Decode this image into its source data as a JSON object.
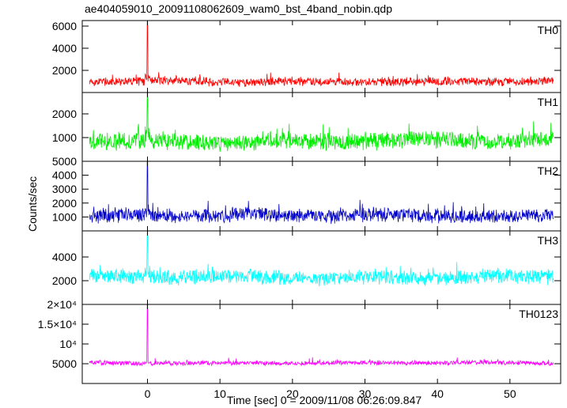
{
  "chart_data": {
    "type": "line",
    "title": "ae404059010_20091108062609_wam0_bst_4band_nobin.qdp",
    "xlabel": "Time [sec] 0 = 2009/11/08 06:26:09.847",
    "ylabel": "Counts/sec",
    "xlim": [
      -9,
      57
    ],
    "x_ticks": [
      0,
      10,
      20,
      30,
      40,
      50
    ],
    "x_tick_labels": [
      "0",
      "10",
      "20",
      "30",
      "40",
      "50"
    ],
    "x_range_of_data": [
      -8,
      56
    ],
    "burst_time": 0,
    "grid": false,
    "panels": [
      {
        "name": "TH0",
        "color": "#ff0000",
        "ylim": [
          0,
          6500
        ],
        "y_ticks": [
          2000,
          4000,
          6000
        ],
        "y_tick_labels": [
          "2000",
          "4000",
          "6000"
        ],
        "baseline": 1000,
        "noise_spread": 350,
        "peak": 6400
      },
      {
        "name": "TH1",
        "color": "#00ee00",
        "ylim": [
          0,
          2900
        ],
        "y_ticks": [
          1000,
          2000
        ],
        "y_tick_labels": [
          "1000",
          "2000"
        ],
        "baseline": 850,
        "noise_spread": 330,
        "peak": 2900
      },
      {
        "name": "TH2",
        "color": "#0000cc",
        "ylim": [
          0,
          5000
        ],
        "y_ticks": [
          1000,
          2000,
          3000,
          4000,
          5000
        ],
        "y_tick_labels": [
          "1000",
          "2000",
          "3000",
          "4000",
          "5000"
        ],
        "baseline": 1100,
        "noise_spread": 450,
        "peak": 5000
      },
      {
        "name": "TH3",
        "color": "#00ffff",
        "ylim": [
          0,
          6200
        ],
        "y_ticks": [
          2000,
          4000
        ],
        "y_tick_labels": [
          "2000",
          "4000"
        ],
        "baseline": 2300,
        "noise_spread": 550,
        "peak": 6200
      },
      {
        "name": "TH0123",
        "color": "#ff00ff",
        "ylim": [
          0,
          20000
        ],
        "y_ticks": [
          5000,
          10000,
          15000,
          20000
        ],
        "y_tick_labels": [
          "5000",
          "10⁴",
          "1.5×10⁴",
          "2×10⁴"
        ],
        "baseline": 5200,
        "noise_spread": 500,
        "peak": 20000
      }
    ]
  }
}
